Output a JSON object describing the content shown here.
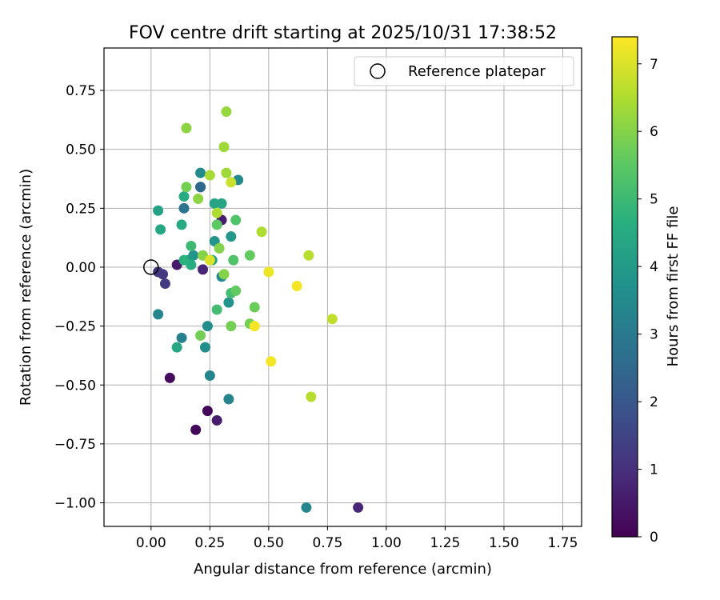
{
  "chart_data": {
    "type": "scatter",
    "title": "FOV centre drift starting at 2025/10/31 17:38:52",
    "xlabel": "Angular distance from reference (arcmin)",
    "ylabel": "Rotation from reference (arcmin)",
    "xlim": [
      -0.2,
      1.83
    ],
    "ylim": [
      -1.1,
      0.93
    ],
    "xticks": [
      0.0,
      0.25,
      0.5,
      0.75,
      1.0,
      1.25,
      1.5,
      1.75
    ],
    "xtick_labels": [
      "0.00",
      "0.25",
      "0.50",
      "0.75",
      "1.00",
      "1.25",
      "1.50",
      "1.75"
    ],
    "yticks": [
      0.75,
      0.5,
      0.25,
      0.0,
      -0.25,
      -0.5,
      -0.75,
      -1.0
    ],
    "ytick_labels": [
      "0.75",
      "0.50",
      "0.25",
      "0.00",
      "−0.25",
      "−0.50",
      "−0.75",
      "−1.00"
    ],
    "grid": true,
    "legend": {
      "placement": "top-right",
      "label": "Reference platepar"
    },
    "reference_point": {
      "x": 0.0,
      "y": 0.0
    },
    "colorbar": {
      "label": "Hours from first FF file",
      "min": 0,
      "max": 7.4,
      "ticks": [
        0,
        1,
        2,
        3,
        4,
        5,
        6,
        7
      ],
      "tick_labels": [
        "0",
        "1",
        "2",
        "3",
        "4",
        "5",
        "6",
        "7"
      ],
      "colormap": "viridis"
    },
    "points": [
      {
        "x": 0.08,
        "y": -0.47,
        "h": 0.2
      },
      {
        "x": 0.19,
        "y": -0.69,
        "h": 0.1
      },
      {
        "x": 0.24,
        "y": -0.61,
        "h": 0.1
      },
      {
        "x": 0.28,
        "y": -0.65,
        "h": 0.6
      },
      {
        "x": 0.88,
        "y": -1.02,
        "h": 0.8
      },
      {
        "x": 0.11,
        "y": 0.01,
        "h": 0.5
      },
      {
        "x": 0.22,
        "y": -0.01,
        "h": 0.8
      },
      {
        "x": 0.3,
        "y": 0.2,
        "h": 0.6
      },
      {
        "x": 0.03,
        "y": -0.02,
        "h": 1.1
      },
      {
        "x": 0.05,
        "y": -0.03,
        "h": 1.2
      },
      {
        "x": 0.06,
        "y": -0.07,
        "h": 1.3
      },
      {
        "x": 0.21,
        "y": 0.34,
        "h": 2.0
      },
      {
        "x": 0.21,
        "y": 0.34,
        "h": 2.5
      },
      {
        "x": 0.14,
        "y": 0.25,
        "h": 2.8
      },
      {
        "x": 0.13,
        "y": -0.3,
        "h": 3.2
      },
      {
        "x": 0.25,
        "y": -0.46,
        "h": 3.3
      },
      {
        "x": 0.33,
        "y": -0.56,
        "h": 3.3
      },
      {
        "x": 0.66,
        "y": -1.02,
        "h": 3.4
      },
      {
        "x": 0.03,
        "y": -0.2,
        "h": 3.4
      },
      {
        "x": 0.23,
        "y": -0.34,
        "h": 3.6
      },
      {
        "x": 0.24,
        "y": -0.25,
        "h": 3.6
      },
      {
        "x": 0.21,
        "y": 0.4,
        "h": 3.5
      },
      {
        "x": 0.37,
        "y": 0.37,
        "h": 3.5
      },
      {
        "x": 0.3,
        "y": -0.04,
        "h": 3.5
      },
      {
        "x": 0.33,
        "y": -0.15,
        "h": 3.8
      },
      {
        "x": 0.34,
        "y": 0.13,
        "h": 3.9
      },
      {
        "x": 0.27,
        "y": 0.11,
        "h": 3.8
      },
      {
        "x": 0.18,
        "y": 0.05,
        "h": 3.8
      },
      {
        "x": 0.16,
        "y": 0.03,
        "h": 4.0
      },
      {
        "x": 0.26,
        "y": 0.03,
        "h": 4.2
      },
      {
        "x": 0.3,
        "y": 0.27,
        "h": 4.3
      },
      {
        "x": 0.27,
        "y": 0.27,
        "h": 4.3
      },
      {
        "x": 0.03,
        "y": 0.24,
        "h": 4.2
      },
      {
        "x": 0.04,
        "y": 0.16,
        "h": 4.4
      },
      {
        "x": 0.14,
        "y": 0.3,
        "h": 4.5
      },
      {
        "x": 0.13,
        "y": 0.18,
        "h": 4.5
      },
      {
        "x": 0.11,
        "y": -0.34,
        "h": 4.4
      },
      {
        "x": 0.17,
        "y": 0.01,
        "h": 4.6
      },
      {
        "x": 0.14,
        "y": 0.03,
        "h": 4.7
      },
      {
        "x": 0.17,
        "y": 0.09,
        "h": 5.0
      },
      {
        "x": 0.34,
        "y": -0.11,
        "h": 5.1
      },
      {
        "x": 0.28,
        "y": -0.18,
        "h": 5.1
      },
      {
        "x": 0.36,
        "y": 0.2,
        "h": 5.3
      },
      {
        "x": 0.35,
        "y": 0.03,
        "h": 5.3
      },
      {
        "x": 0.28,
        "y": 0.18,
        "h": 5.5
      },
      {
        "x": 0.36,
        "y": -0.1,
        "h": 5.6
      },
      {
        "x": 0.42,
        "y": 0.05,
        "h": 5.6
      },
      {
        "x": 0.44,
        "y": -0.17,
        "h": 5.7
      },
      {
        "x": 0.42,
        "y": -0.24,
        "h": 5.8
      },
      {
        "x": 0.34,
        "y": -0.25,
        "h": 5.8
      },
      {
        "x": 0.21,
        "y": -0.29,
        "h": 5.8
      },
      {
        "x": 0.15,
        "y": 0.34,
        "h": 5.8
      },
      {
        "x": 0.29,
        "y": 0.08,
        "h": 6.0
      },
      {
        "x": 0.31,
        "y": -0.03,
        "h": 6.0
      },
      {
        "x": 0.22,
        "y": 0.05,
        "h": 6.0
      },
      {
        "x": 0.2,
        "y": 0.29,
        "h": 6.1
      },
      {
        "x": 0.15,
        "y": 0.59,
        "h": 6.1
      },
      {
        "x": 0.32,
        "y": 0.66,
        "h": 6.2
      },
      {
        "x": 0.31,
        "y": 0.51,
        "h": 6.3
      },
      {
        "x": 0.32,
        "y": 0.4,
        "h": 6.3
      },
      {
        "x": 0.25,
        "y": 0.39,
        "h": 6.4
      },
      {
        "x": 0.28,
        "y": 0.23,
        "h": 6.5
      },
      {
        "x": 0.47,
        "y": 0.15,
        "h": 6.5
      },
      {
        "x": 0.68,
        "y": -0.55,
        "h": 6.6
      },
      {
        "x": 0.67,
        "y": 0.05,
        "h": 6.6
      },
      {
        "x": 0.77,
        "y": -0.22,
        "h": 6.7
      },
      {
        "x": 0.34,
        "y": 0.36,
        "h": 6.8
      },
      {
        "x": 0.25,
        "y": 0.03,
        "h": 7.0
      },
      {
        "x": 0.5,
        "y": -0.02,
        "h": 7.2
      },
      {
        "x": 0.62,
        "y": -0.08,
        "h": 7.3
      },
      {
        "x": 0.44,
        "y": -0.25,
        "h": 7.3
      },
      {
        "x": 0.51,
        "y": -0.4,
        "h": 7.3
      }
    ]
  }
}
